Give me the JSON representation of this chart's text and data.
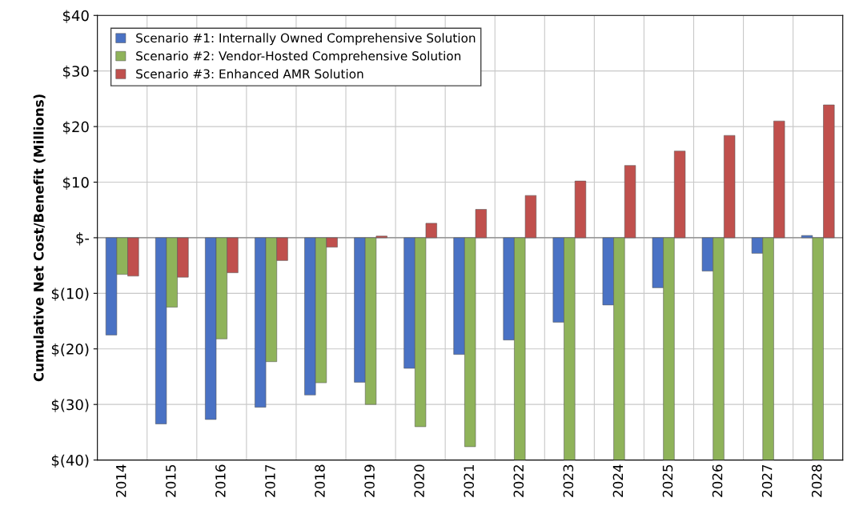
{
  "chart_data": {
    "type": "bar",
    "ylabel": "Cumulative Net Cost/Benefit (Millions)",
    "categories": [
      "2014",
      "2015",
      "2016",
      "2017",
      "2018",
      "2019",
      "2020",
      "2021",
      "2022",
      "2023",
      "2024",
      "2025",
      "2026",
      "2027",
      "2028"
    ],
    "series": [
      {
        "name": "Scenario #1: Internally Owned Comprehensive Solution",
        "color": "#4a72c4",
        "values": [
          -17.5,
          -33.5,
          -32.7,
          -30.5,
          -28.3,
          -26,
          -23.5,
          -21,
          -18.4,
          -15.2,
          -12.1,
          -9,
          -6,
          -2.8,
          0.4
        ]
      },
      {
        "name": "Scenario #2: Vendor-Hosted Comprehensive Solution",
        "color": "#8fb35a",
        "values": [
          -6.6,
          -12.5,
          -18.2,
          -22.3,
          -26.1,
          -30,
          -34,
          -37.6,
          -40,
          -40,
          -40,
          -40,
          -40,
          -40,
          -40
        ]
      },
      {
        "name": "Scenario #3: Enhanced AMR Solution",
        "color": "#c0504d",
        "values": [
          -6.9,
          -7.1,
          -6.3,
          -4.1,
          -1.7,
          0.3,
          2.6,
          5.1,
          7.6,
          10.2,
          13,
          15.6,
          18.4,
          21,
          23.9
        ]
      }
    ],
    "ylim": [
      -40,
      40
    ],
    "yticks": [
      {
        "value": -40,
        "label": "$(40)"
      },
      {
        "value": -30,
        "label": "$(30)"
      },
      {
        "value": -20,
        "label": "$(20)"
      },
      {
        "value": -10,
        "label": "$(10)"
      },
      {
        "value": 0,
        "label": "$-"
      },
      {
        "value": 10,
        "label": "$10"
      },
      {
        "value": 20,
        "label": "$20"
      },
      {
        "value": 30,
        "label": "$30"
      },
      {
        "value": 40,
        "label": "$40"
      }
    ],
    "grid": true,
    "legend": "top left"
  }
}
